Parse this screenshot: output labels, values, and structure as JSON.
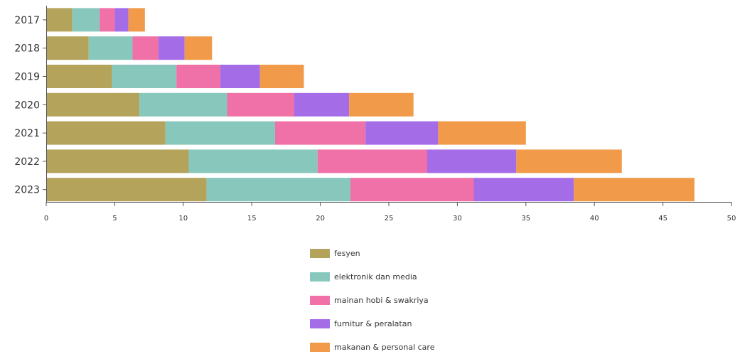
{
  "chart_data": {
    "type": "bar",
    "orientation": "horizontal",
    "stacked": true,
    "categories": [
      "2017",
      "2018",
      "2019",
      "2020",
      "2021",
      "2022",
      "2023"
    ],
    "series": [
      {
        "name": "fesyen",
        "color": "#b3a35b",
        "values": [
          1.9,
          3.1,
          4.8,
          6.8,
          8.7,
          10.4,
          11.7
        ]
      },
      {
        "name": "elektronik dan media",
        "color": "#88c8bc",
        "values": [
          2.0,
          3.2,
          4.7,
          6.4,
          8.0,
          9.4,
          10.5
        ]
      },
      {
        "name": "mainan hobi & swakriya",
        "color": "#f070a8",
        "values": [
          1.1,
          1.9,
          3.2,
          4.9,
          6.6,
          8.0,
          9.0
        ]
      },
      {
        "name": "furnitur & peralatan",
        "color": "#a56ce8",
        "values": [
          1.0,
          1.9,
          2.9,
          4.0,
          5.3,
          6.5,
          7.3
        ]
      },
      {
        "name": "makanan & personal care",
        "color": "#f09a4a",
        "values": [
          1.2,
          2.0,
          3.2,
          4.7,
          6.4,
          7.7,
          8.8
        ]
      }
    ],
    "xlim": [
      0,
      50
    ],
    "xticks": [
      "0",
      "5",
      "10",
      "15",
      "20",
      "25",
      "30",
      "35",
      "40",
      "45",
      "50"
    ],
    "grid": false,
    "legend_position": "bottom"
  }
}
